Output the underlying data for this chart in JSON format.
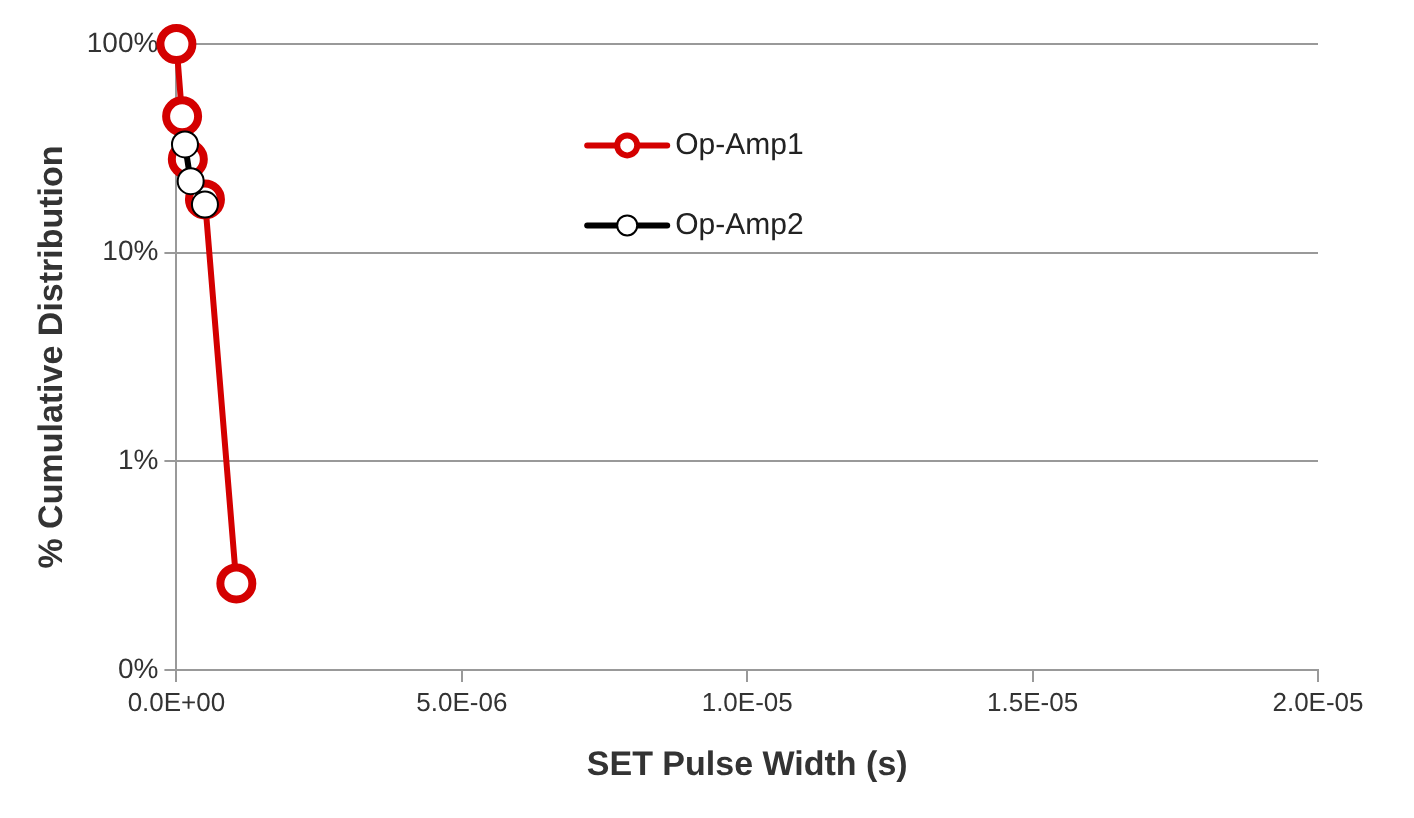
{
  "chart_data": {
    "type": "line",
    "xlabel": "SET Pulse Width (s)",
    "ylabel": "% Cumulative Distribution",
    "series": [
      {
        "name": "Op-Amp1",
        "color": "#d40000",
        "x": [
          0,
          1e-07,
          2e-07,
          5e-07,
          1.05e-06
        ],
        "values": [
          100,
          45,
          28,
          18,
          0.26
        ]
      },
      {
        "name": "Op-Amp2",
        "color": "#000000",
        "x": [
          1.5e-07,
          2.5e-07,
          5e-07
        ],
        "values": [
          33,
          22,
          17
        ]
      }
    ],
    "log": "y",
    "xlim": [
      0,
      2e-05
    ],
    "xticks": [
      {
        "value": 0,
        "label": "0.0E+00"
      },
      {
        "value": 5e-06,
        "label": "5.0E-06"
      },
      {
        "value": 1e-05,
        "label": "1.0E-05"
      },
      {
        "value": 1.5e-05,
        "label": "1.5E-05"
      },
      {
        "value": 2e-05,
        "label": "2.0E-05"
      }
    ],
    "ylim": [
      0.1,
      100
    ],
    "yticks": [
      {
        "value": 0.1,
        "label": "0%"
      },
      {
        "value": 1,
        "label": "1%"
      },
      {
        "value": 10,
        "label": "10%"
      },
      {
        "value": 100,
        "label": "100%"
      }
    ],
    "grid": "y",
    "legend": "top",
    "marker": "circle",
    "line_style": "solid"
  }
}
